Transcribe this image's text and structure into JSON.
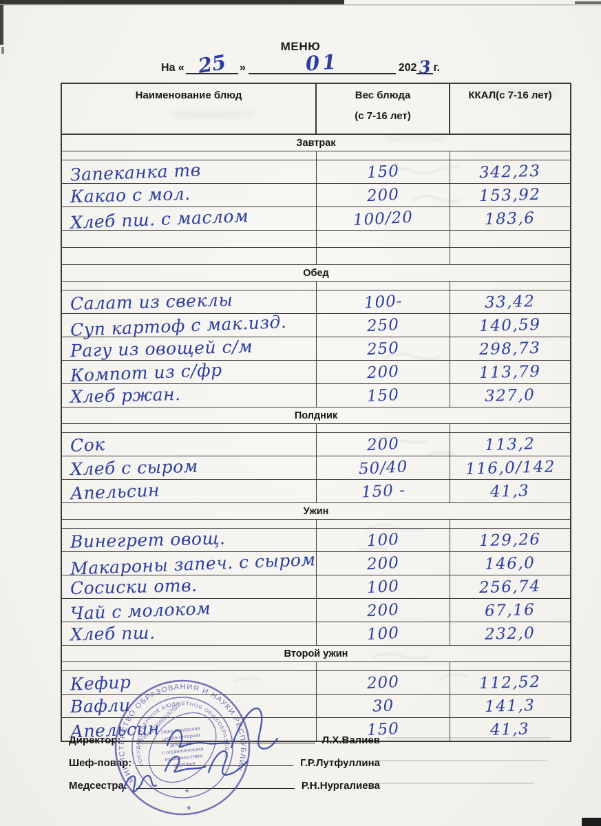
{
  "header": {
    "title": "МЕНЮ",
    "date_prefix": "На «",
    "day": "25",
    "quote_close": "»",
    "month": "01",
    "year_prefix": "202",
    "year_digit": "3",
    "date_suffix": "г."
  },
  "table": {
    "col_headers": {
      "name": "Наименование блюд",
      "weight_line1": "Вес блюда",
      "weight_line2": "(с 7-16 лет)",
      "kcal": "ККАЛ(с 7-16 лет)"
    },
    "sections": [
      {
        "title": "Завтрак",
        "rows": [
          {
            "n": "Запеканка тв",
            "w": "150",
            "k": "342,23"
          },
          {
            "n": "Какао с мол.",
            "w": "200",
            "k": "153,92"
          },
          {
            "n": "Хлеб пш. с маслом",
            "w": "100/20",
            "k": "183,6"
          },
          {
            "n": "",
            "w": "",
            "k": ""
          },
          {
            "n": "",
            "w": "",
            "k": ""
          }
        ]
      },
      {
        "title": "Обед",
        "rows": [
          {
            "n": "Салат из свеклы",
            "w": "100-",
            "k": "33,42"
          },
          {
            "n": "Суп картоф с мак.изд.",
            "w": "250",
            "k": "140,59"
          },
          {
            "n": "Рагу из овощей с/м",
            "w": "250",
            "k": "298,73"
          },
          {
            "n": "Компот из с/фр",
            "w": "200",
            "k": "113,79"
          },
          {
            "n": "Хлеб ржан.",
            "w": "150",
            "k": "327,0"
          }
        ]
      },
      {
        "title": "Полдник",
        "rows": [
          {
            "n": "Сок",
            "w": "200",
            "k": "113,2"
          },
          {
            "n": "Хлеб с сыром",
            "w": "50/40",
            "k": "116,0/142"
          },
          {
            "n": "Апельсин",
            "w": "150 -",
            "k": "41,3"
          }
        ]
      },
      {
        "title": "Ужин",
        "rows": [
          {
            "n": "Винегрет овощ.",
            "w": "100",
            "k": "129,26"
          },
          {
            "n": "Макароны запеч. с сыром",
            "w": "200",
            "k": "146,0"
          },
          {
            "n": "Сосиски отв.",
            "w": "100",
            "k": "256,74"
          },
          {
            "n": "Чай с молоком",
            "w": "200",
            "k": "67,16"
          },
          {
            "n": "Хлеб пш.",
            "w": "100",
            "k": "232,0"
          }
        ]
      },
      {
        "title": "Второй ужин",
        "rows": [
          {
            "n": "Кефир",
            "w": "200",
            "k": "112,52"
          },
          {
            "n": "Вафли",
            "w": "30",
            "k": "141,3"
          },
          {
            "n": "Апельсин",
            "w": "150",
            "k": "41,3"
          }
        ]
      }
    ]
  },
  "signatures": [
    {
      "role": "Директор:",
      "name": "Л.Х.Валиев"
    },
    {
      "role": "Шеф-повар:",
      "name": "Г.Р.Лутфуллина"
    },
    {
      "role": "Медсестра:",
      "name": "Р.Н.Нургалиева"
    }
  ],
  "stamp": {
    "outer_text": "МИНИСТЕРСТВО ОБРАЗОВАНИЯ И НАУКИ РЕСПУБЛИКИ ТАТАРСТАН",
    "ring_text": "ГОСУДАРСТВЕННОЕ БЮДЖЕТНОЕ ОБЩЕОБРАЗОВАТЕЛЬНОЕ УЧРЕЖДЕНИЕ",
    "ogrn": "ОГРН 1021606157022",
    "star": "★",
    "center_lines": [
      "Ново-Кинерская",
      "школа-интернат",
      "для детей",
      "с ограниченными",
      "возможностями",
      "здоровья"
    ],
    "color": "#5b51a9"
  },
  "colors": {
    "ink": "#2d3e9e",
    "stamp": "#5b51a9",
    "paper": "#f5f4f0"
  }
}
